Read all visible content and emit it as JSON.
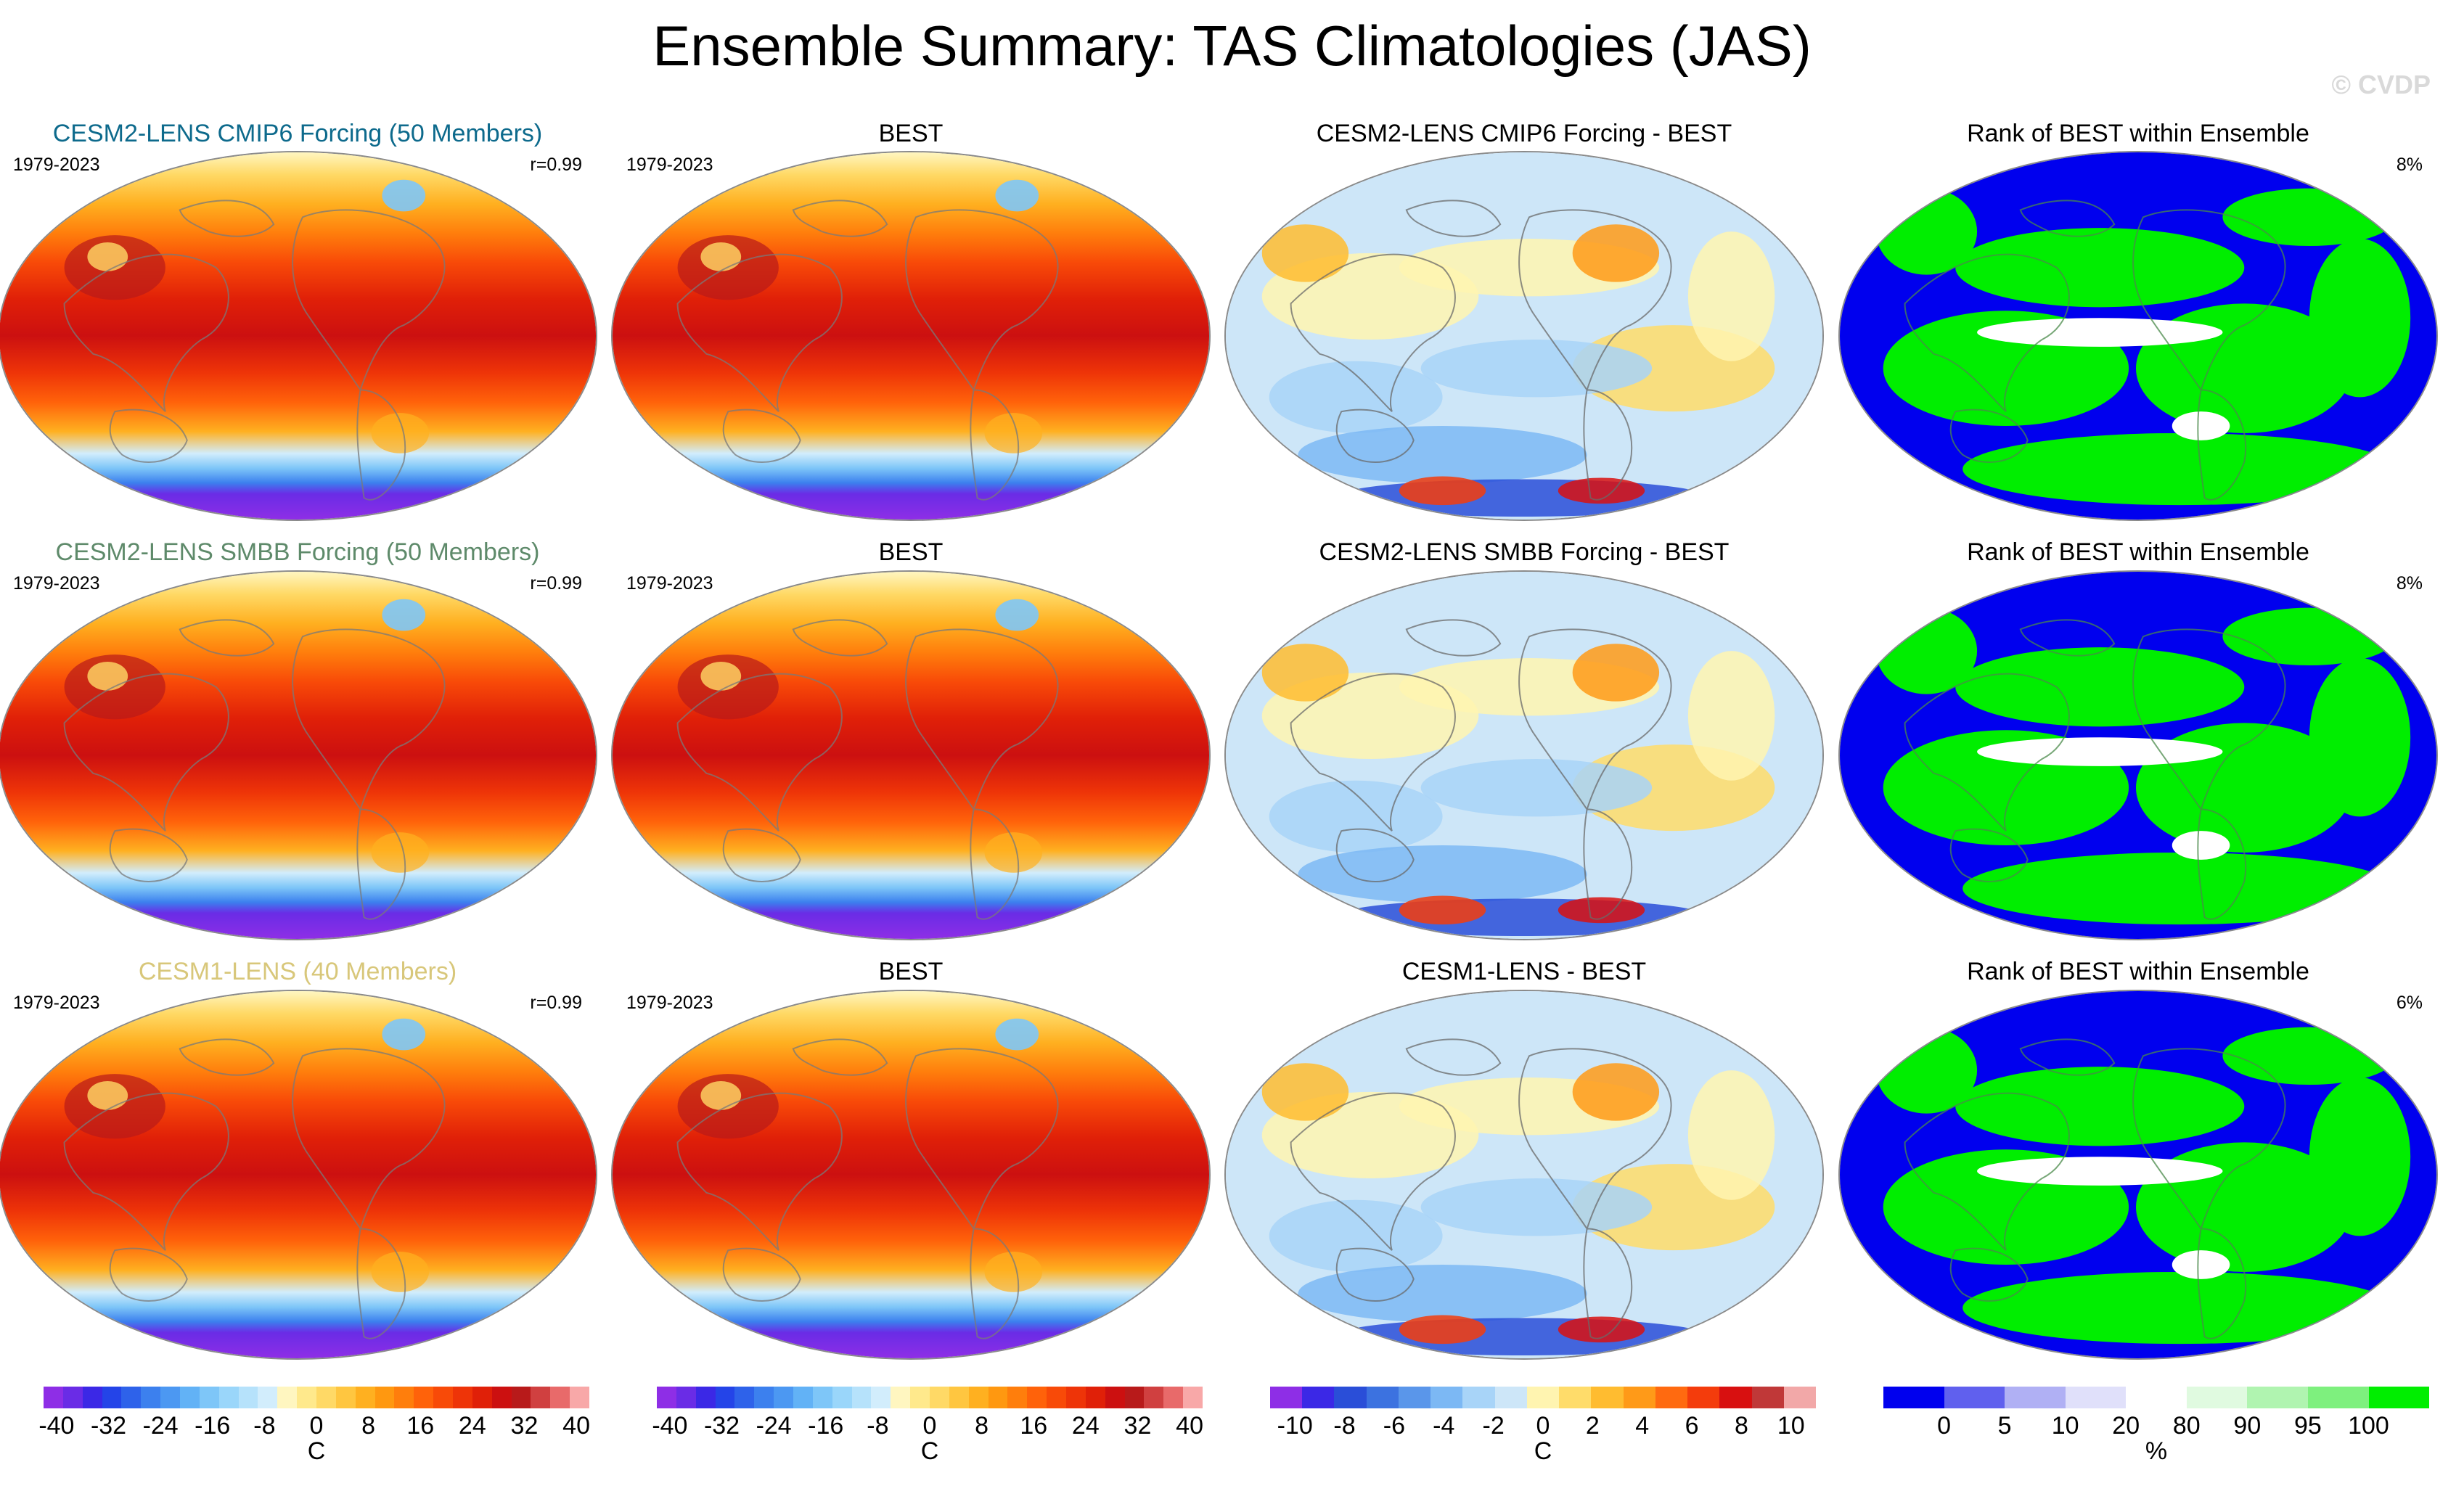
{
  "figure": {
    "title": "Ensemble Summary: TAS Climatologies (JAS)",
    "copyright": "© CVDP"
  },
  "chart_data": [
    {
      "type": "heatmap",
      "title": "CESM2-LENS CMIP6 Forcing (50 Members)",
      "title_color": "#0d6a8c",
      "period": "1979-2023",
      "stat": "r=0.99",
      "field": "climatology",
      "units": "C",
      "range": [
        -40,
        40
      ]
    },
    {
      "type": "heatmap",
      "title": "BEST",
      "period": "1979-2023",
      "field": "climatology",
      "units": "C",
      "range": [
        -40,
        40
      ]
    },
    {
      "type": "heatmap",
      "title": "CESM2-LENS CMIP6 Forcing - BEST",
      "field": "difference",
      "units": "C",
      "range": [
        -10,
        10
      ]
    },
    {
      "type": "heatmap",
      "title": "Rank of BEST within Ensemble",
      "stat": "8%",
      "field": "rank",
      "units": "%",
      "range": [
        0,
        100
      ]
    },
    {
      "type": "heatmap",
      "title": "CESM2-LENS SMBB Forcing (50 Members)",
      "title_color": "#5e8a6a",
      "period": "1979-2023",
      "stat": "r=0.99",
      "field": "climatology",
      "units": "C",
      "range": [
        -40,
        40
      ]
    },
    {
      "type": "heatmap",
      "title": "BEST",
      "period": "1979-2023",
      "field": "climatology",
      "units": "C",
      "range": [
        -40,
        40
      ]
    },
    {
      "type": "heatmap",
      "title": "CESM2-LENS SMBB Forcing - BEST",
      "field": "difference",
      "units": "C",
      "range": [
        -10,
        10
      ]
    },
    {
      "type": "heatmap",
      "title": "Rank of BEST within Ensemble",
      "stat": "8%",
      "field": "rank",
      "units": "%",
      "range": [
        0,
        100
      ]
    },
    {
      "type": "heatmap",
      "title": "CESM1-LENS (40 Members)",
      "title_color": "#d8c77a",
      "period": "1979-2023",
      "stat": "r=0.99",
      "field": "climatology",
      "units": "C",
      "range": [
        -40,
        40
      ]
    },
    {
      "type": "heatmap",
      "title": "BEST",
      "period": "1979-2023",
      "field": "climatology",
      "units": "C",
      "range": [
        -40,
        40
      ]
    },
    {
      "type": "heatmap",
      "title": "CESM1-LENS - BEST",
      "field": "difference",
      "units": "C",
      "range": [
        -10,
        10
      ]
    },
    {
      "type": "heatmap",
      "title": "Rank of BEST within Ensemble",
      "stat": "6%",
      "field": "rank",
      "units": "%",
      "range": [
        0,
        100
      ]
    }
  ],
  "colorbars": [
    {
      "name": "tas",
      "unit": "C",
      "tick_labels": [
        "-40",
        "-32",
        "-24",
        "-16",
        "-8",
        "0",
        "8",
        "16",
        "24",
        "32",
        "40"
      ],
      "tick_values": [
        -40,
        -32,
        -24,
        -16,
        -8,
        0,
        8,
        16,
        24,
        32,
        40
      ],
      "range": [
        -42,
        42
      ],
      "colors": [
        "#8e2ee6",
        "#6a2ce6",
        "#3b28e6",
        "#2444e8",
        "#2e62ea",
        "#3c80ee",
        "#4c98f2",
        "#62b2f6",
        "#7ec6f8",
        "#9ad6fa",
        "#b6e2fb",
        "#d2edfc",
        "#fff6c0",
        "#ffe98c",
        "#ffd966",
        "#ffc640",
        "#ffb020",
        "#ff9810",
        "#ff7e0c",
        "#ff620a",
        "#f84a08",
        "#ee3408",
        "#e02008",
        "#cc1010",
        "#b81a1a",
        "#d04040",
        "#e86a6a",
        "#f8a8a8"
      ]
    },
    {
      "name": "tas_best",
      "unit": "C",
      "tick_labels": [
        "-40",
        "-32",
        "-24",
        "-16",
        "-8",
        "0",
        "8",
        "16",
        "24",
        "32",
        "40"
      ],
      "tick_values": [
        -40,
        -32,
        -24,
        -16,
        -8,
        0,
        8,
        16,
        24,
        32,
        40
      ],
      "range": [
        -42,
        42
      ],
      "colors": [
        "#8e2ee6",
        "#6a2ce6",
        "#3b28e6",
        "#2444e8",
        "#2e62ea",
        "#3c80ee",
        "#4c98f2",
        "#62b2f6",
        "#7ec6f8",
        "#9ad6fa",
        "#b6e2fb",
        "#d2edfc",
        "#fff6c0",
        "#ffe98c",
        "#ffd966",
        "#ffc640",
        "#ffb020",
        "#ff9810",
        "#ff7e0c",
        "#ff620a",
        "#f84a08",
        "#ee3408",
        "#e02008",
        "#cc1010",
        "#b81a1a",
        "#d04040",
        "#e86a6a",
        "#f8a8a8"
      ]
    },
    {
      "name": "diff",
      "unit": "C",
      "tick_labels": [
        "-10",
        "-8",
        "-6",
        "-4",
        "-2",
        "0",
        "2",
        "4",
        "6",
        "8",
        "10"
      ],
      "tick_values": [
        -10,
        -8,
        -6,
        -4,
        -2,
        0,
        2,
        4,
        6,
        8,
        10
      ],
      "range": [
        -11,
        11
      ],
      "colors": [
        "#8e2ee6",
        "#3b28e6",
        "#2a4ed8",
        "#3c72e0",
        "#5a96ea",
        "#7cb8f4",
        "#a8d4f8",
        "#cde6f8",
        "#fff4b0",
        "#ffdc6a",
        "#ffbc30",
        "#ff9a18",
        "#ff6a10",
        "#f43c0c",
        "#d81010",
        "#c03838",
        "#f2a8a8"
      ]
    },
    {
      "name": "rank",
      "unit": "%",
      "tick_labels": [
        "0",
        "5",
        "10",
        "20",
        "80",
        "90",
        "95",
        "100"
      ],
      "tick_values": [
        0,
        5,
        10,
        20,
        80,
        90,
        95,
        100
      ],
      "range": [
        -5,
        105
      ],
      "colors": [
        "#0000ee",
        "#6060ee",
        "#b0b0f4",
        "#e0e0fa",
        "#ffffff",
        "#e0fae0",
        "#b0f4b0",
        "#7ef07e",
        "#00ee00"
      ]
    }
  ]
}
